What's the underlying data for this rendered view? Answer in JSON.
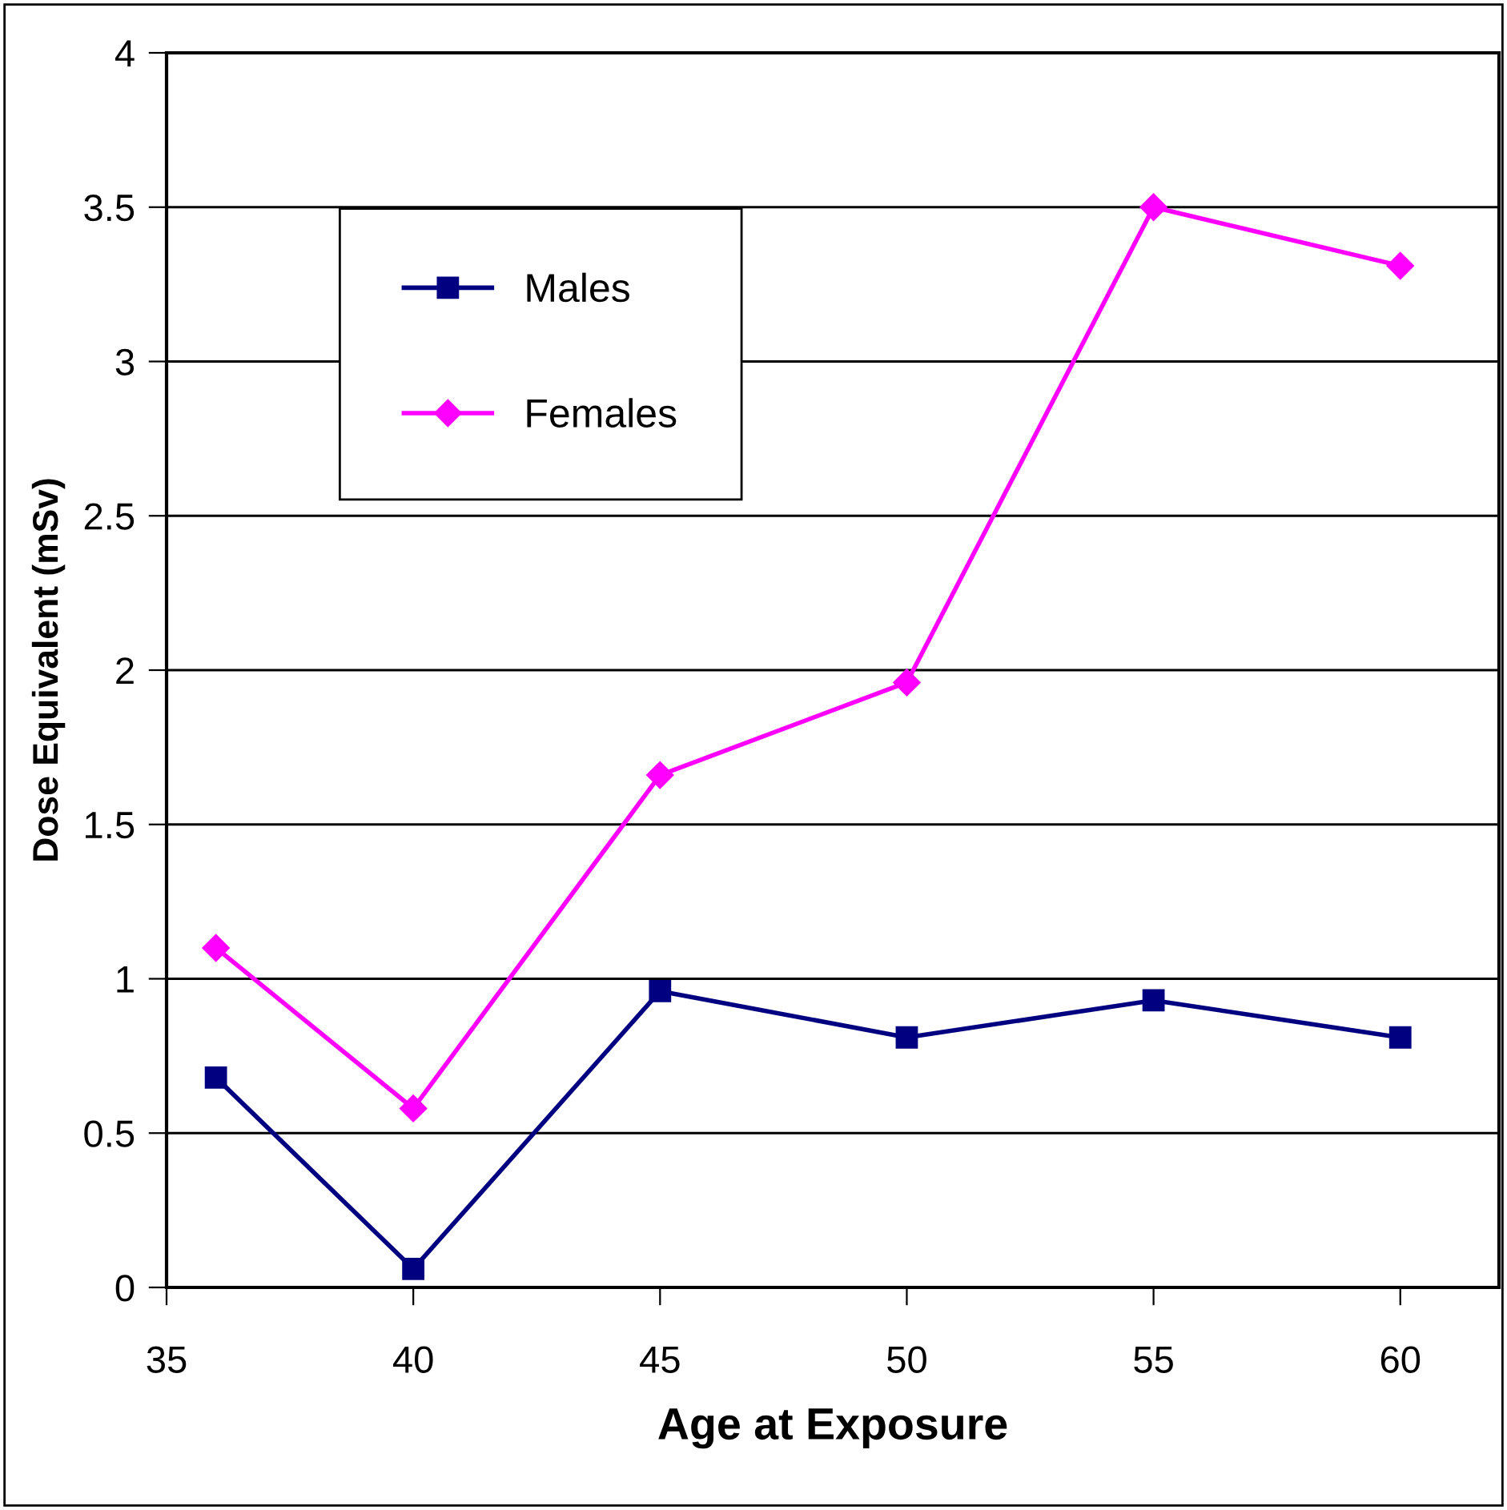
{
  "chart_data": {
    "type": "line",
    "xlabel": "Age at Exposure",
    "ylabel": "Dose Equivalent (mSv)",
    "x": [
      36,
      40,
      45,
      50,
      55,
      60
    ],
    "series": [
      {
        "name": "Males",
        "color": "#000080",
        "marker": "square",
        "values": [
          0.68,
          0.06,
          0.96,
          0.81,
          0.93,
          0.81
        ]
      },
      {
        "name": "Females",
        "color": "#ff00ff",
        "marker": "diamond",
        "values": [
          1.1,
          0.58,
          1.66,
          1.96,
          3.5,
          3.31
        ]
      }
    ],
    "xlim": [
      35,
      62
    ],
    "xticks": [
      35,
      40,
      45,
      50,
      55,
      60
    ],
    "ylim": [
      0,
      4
    ],
    "yticks": [
      0,
      0.5,
      1,
      1.5,
      2,
      2.5,
      3,
      3.5,
      4
    ],
    "grid": "y",
    "legend": "top left",
    "line_style": "solid"
  }
}
